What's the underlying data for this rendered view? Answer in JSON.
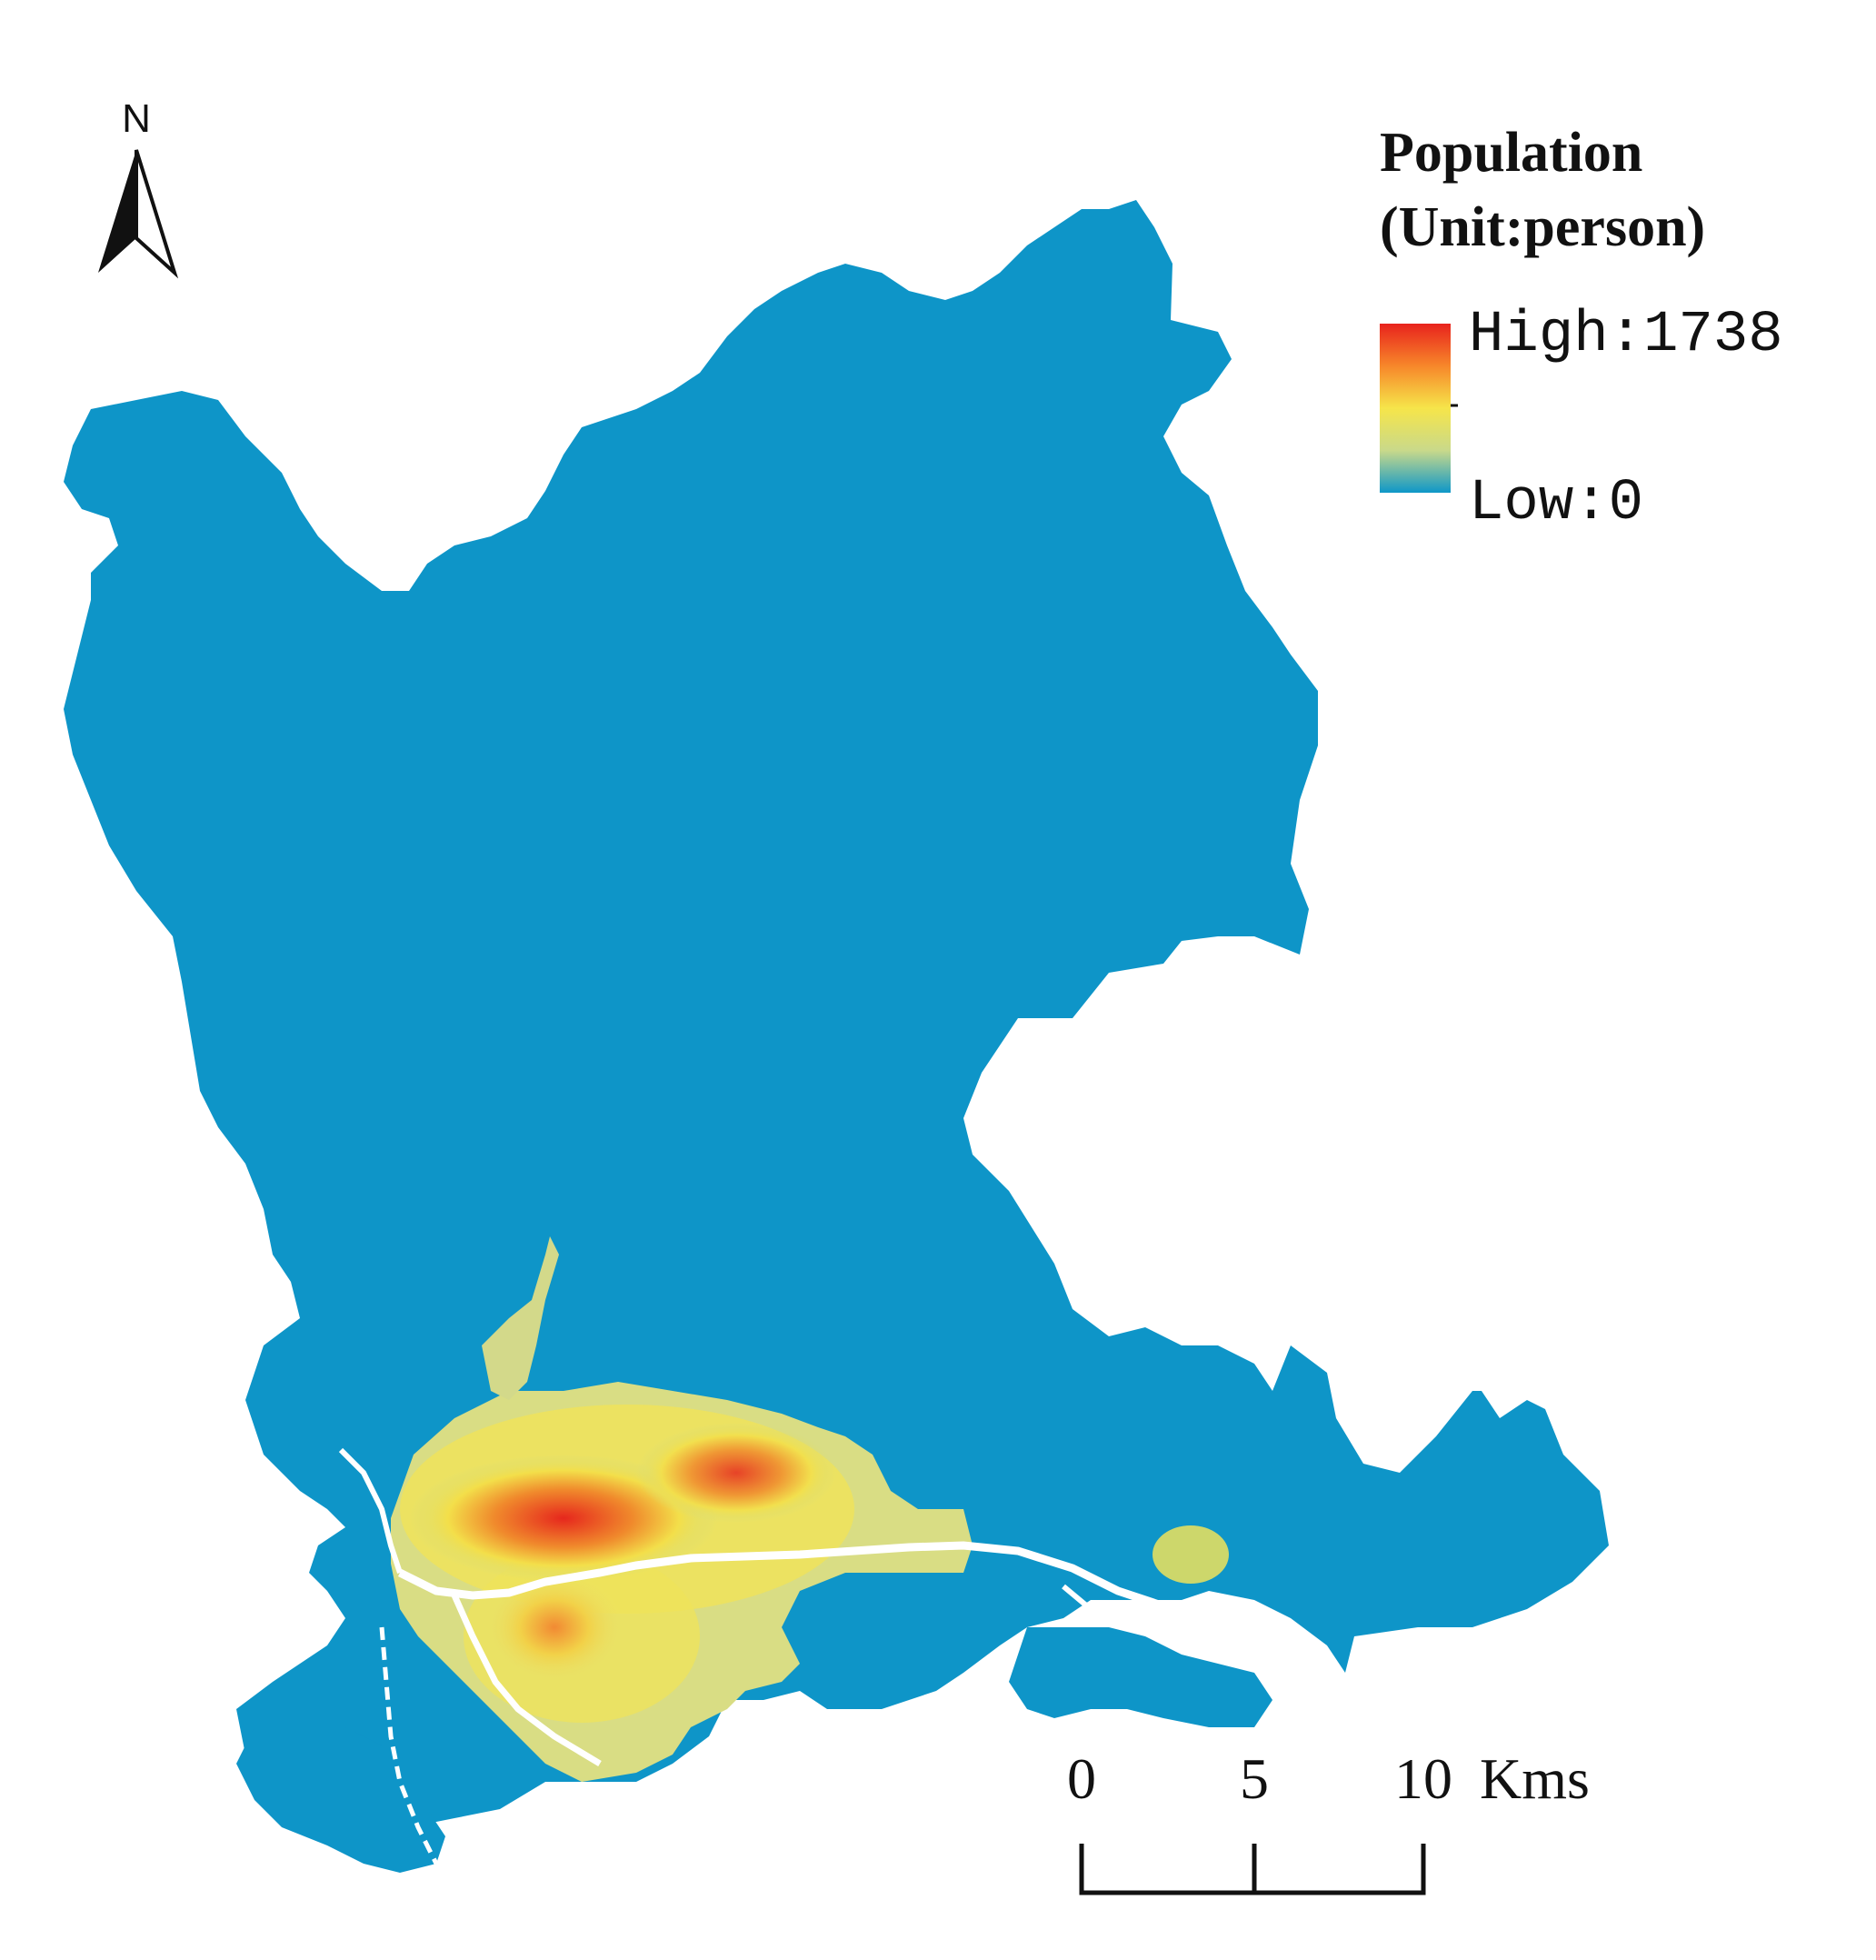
{
  "north_arrow": {
    "label": "N"
  },
  "legend": {
    "title_line1": "Population",
    "title_line2": "(Unit:person)",
    "high_label": "High:1738",
    "low_label": "Low:0",
    "ramp_colors": [
      "#e8231d",
      "#f7872a",
      "#f6e54a",
      "#c9d98a",
      "#0e97c8"
    ]
  },
  "scale_bar": {
    "ticks": [
      "0",
      "5",
      "10"
    ],
    "unit": "Kms"
  },
  "colors": {
    "base": "#0e95c8",
    "low_mid": "#c8d97e",
    "mid": "#f1e54e",
    "mid_high": "#f59a3b",
    "high": "#e6271d"
  }
}
